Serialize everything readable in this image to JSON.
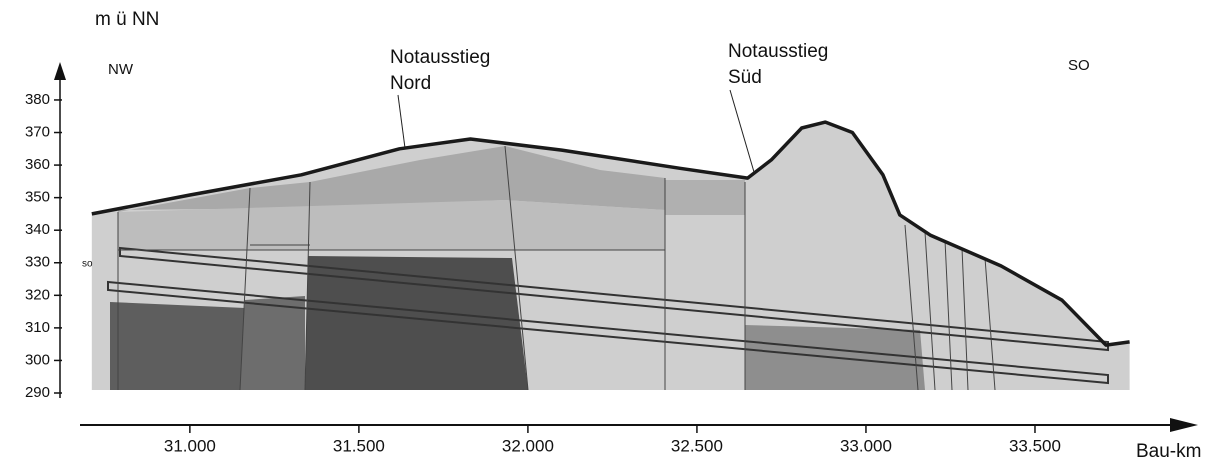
{
  "chart_data": {
    "type": "profile",
    "y_label": "m ü NN",
    "x_label": "Bau-km",
    "left_label": "NW",
    "right_label": "SO",
    "tunnel_label": "so",
    "annotations": [
      {
        "lines": [
          "Notausstieg",
          "Nord"
        ]
      },
      {
        "lines": [
          "Notausstieg",
          "Süd"
        ]
      }
    ],
    "x": [
      30.71,
      31.0,
      31.33,
      31.62,
      31.83,
      32.1,
      32.45,
      32.65,
      32.72,
      32.81,
      32.88,
      32.96,
      33.05,
      33.1,
      33.19,
      33.4,
      33.58,
      33.71,
      33.78
    ],
    "series": [
      {
        "color": "#1a1a1a",
        "values": [
          345,
          350.8,
          357,
          365,
          368,
          364.6,
          359,
          356,
          361.6,
          371.4,
          373.2,
          370,
          357,
          344.7,
          338.5,
          329,
          318.5,
          304.7,
          305.7
        ]
      }
    ],
    "xlim": [
      30.675,
      33.929
    ],
    "xticks": [
      {
        "value": 31,
        "label": "31.000"
      },
      {
        "value": 31.5,
        "label": "31.500"
      },
      {
        "value": 32,
        "label": "32.000"
      },
      {
        "value": 32.5,
        "label": "32.500"
      },
      {
        "value": 33,
        "label": "33.000"
      },
      {
        "value": 33.5,
        "label": "33.500"
      }
    ],
    "ylim": [
      290,
      390
    ],
    "yticks": [
      290,
      300,
      310,
      320,
      330,
      340,
      350,
      360,
      370,
      380
    ]
  }
}
